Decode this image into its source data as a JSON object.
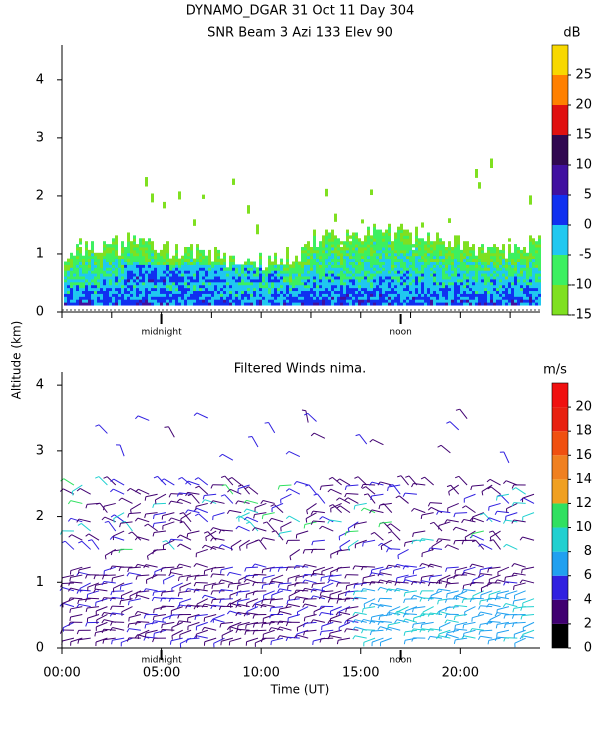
{
  "chart_data": [
    {
      "type": "heatmap",
      "title": "DYNAMO_DGAR  31 Oct 11 Day 304",
      "subtitle": "SNR Beam 3 Azi 133 Elev 90",
      "ylabel": "Altitude (km)",
      "xlim": [
        0,
        24
      ],
      "ylim": [
        0,
        4.6
      ],
      "yticks": [
        0,
        1,
        2,
        3,
        4
      ],
      "xticks": [
        0,
        2.5,
        5,
        7.5,
        10,
        12.5,
        15,
        17.5,
        20,
        22.5
      ],
      "local_marks": [
        {
          "value": 5,
          "label": "midnight"
        },
        {
          "value": 17,
          "label": "noon"
        }
      ],
      "colorbar": {
        "label": "dB",
        "lim": [
          -15,
          30
        ],
        "ticks": [
          -15,
          -10,
          -5,
          0,
          5,
          10,
          15,
          20,
          25
        ],
        "colors": [
          "#7fe020",
          "#3cf060",
          "#20c8f0",
          "#1030f0",
          "#4010a0",
          "#300850",
          "#e01010",
          "#ff8000",
          "#f8d800"
        ]
      }
    },
    {
      "type": "barbs",
      "title": "Filtered Winds nima.",
      "xlabel": "Time (UT)",
      "xlim": [
        0,
        24
      ],
      "ylim": [
        0,
        4.2
      ],
      "yticks": [
        0,
        1,
        2,
        3,
        4
      ],
      "xticks": [
        {
          "value": 0,
          "label": "00:00"
        },
        {
          "value": 5,
          "label": "05:00"
        },
        {
          "value": 10,
          "label": "10:00"
        },
        {
          "value": 15,
          "label": "15:00"
        },
        {
          "value": 20,
          "label": "20:00"
        }
      ],
      "local_marks": [
        {
          "value": 5,
          "label": "midnight"
        },
        {
          "value": 17,
          "label": "noon"
        }
      ],
      "colorbar": {
        "label": "m/s",
        "lim": [
          0,
          22
        ],
        "ticks": [
          0,
          2,
          4,
          6,
          8,
          10,
          12,
          14,
          16,
          18,
          20
        ],
        "colors": [
          "#000000",
          "#400070",
          "#3020e0",
          "#20a0f0",
          "#20d0d0",
          "#30e060",
          "#f0a020",
          "#f08020",
          "#f05010",
          "#e82010",
          "#f01010"
        ]
      }
    }
  ]
}
